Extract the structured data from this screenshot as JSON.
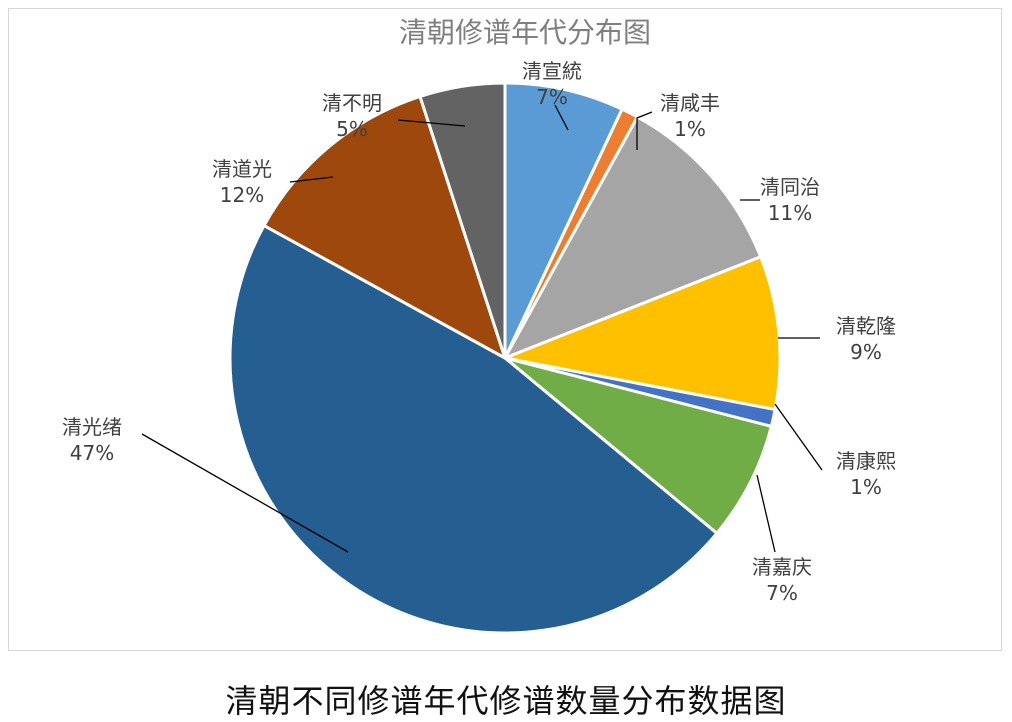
{
  "caption": "清朝不同修谱年代修谱数量分布数据图",
  "chart_data": {
    "type": "pie",
    "title": "清朝修谱年代分布图",
    "slices": [
      {
        "name": "清宣統",
        "value": 7,
        "label": "7%",
        "color": "#5b9bd5"
      },
      {
        "name": "清咸丰",
        "value": 1,
        "label": "1%",
        "color": "#ed7d31"
      },
      {
        "name": "清同治",
        "value": 11,
        "label": "11%",
        "color": "#a5a5a5"
      },
      {
        "name": "清乾隆",
        "value": 9,
        "label": "9%",
        "color": "#ffc000"
      },
      {
        "name": "清康熙",
        "value": 1,
        "label": "1%",
        "color": "#4472c4"
      },
      {
        "name": "清嘉庆",
        "value": 7,
        "label": "7%",
        "color": "#70ad47"
      },
      {
        "name": "清光绪",
        "value": 47,
        "label": "47%",
        "color": "#255e91"
      },
      {
        "name": "清道光",
        "value": 12,
        "label": "12%",
        "color": "#9e480e"
      },
      {
        "name": "清不明",
        "value": 5,
        "label": "5%",
        "color": "#636363"
      }
    ]
  }
}
